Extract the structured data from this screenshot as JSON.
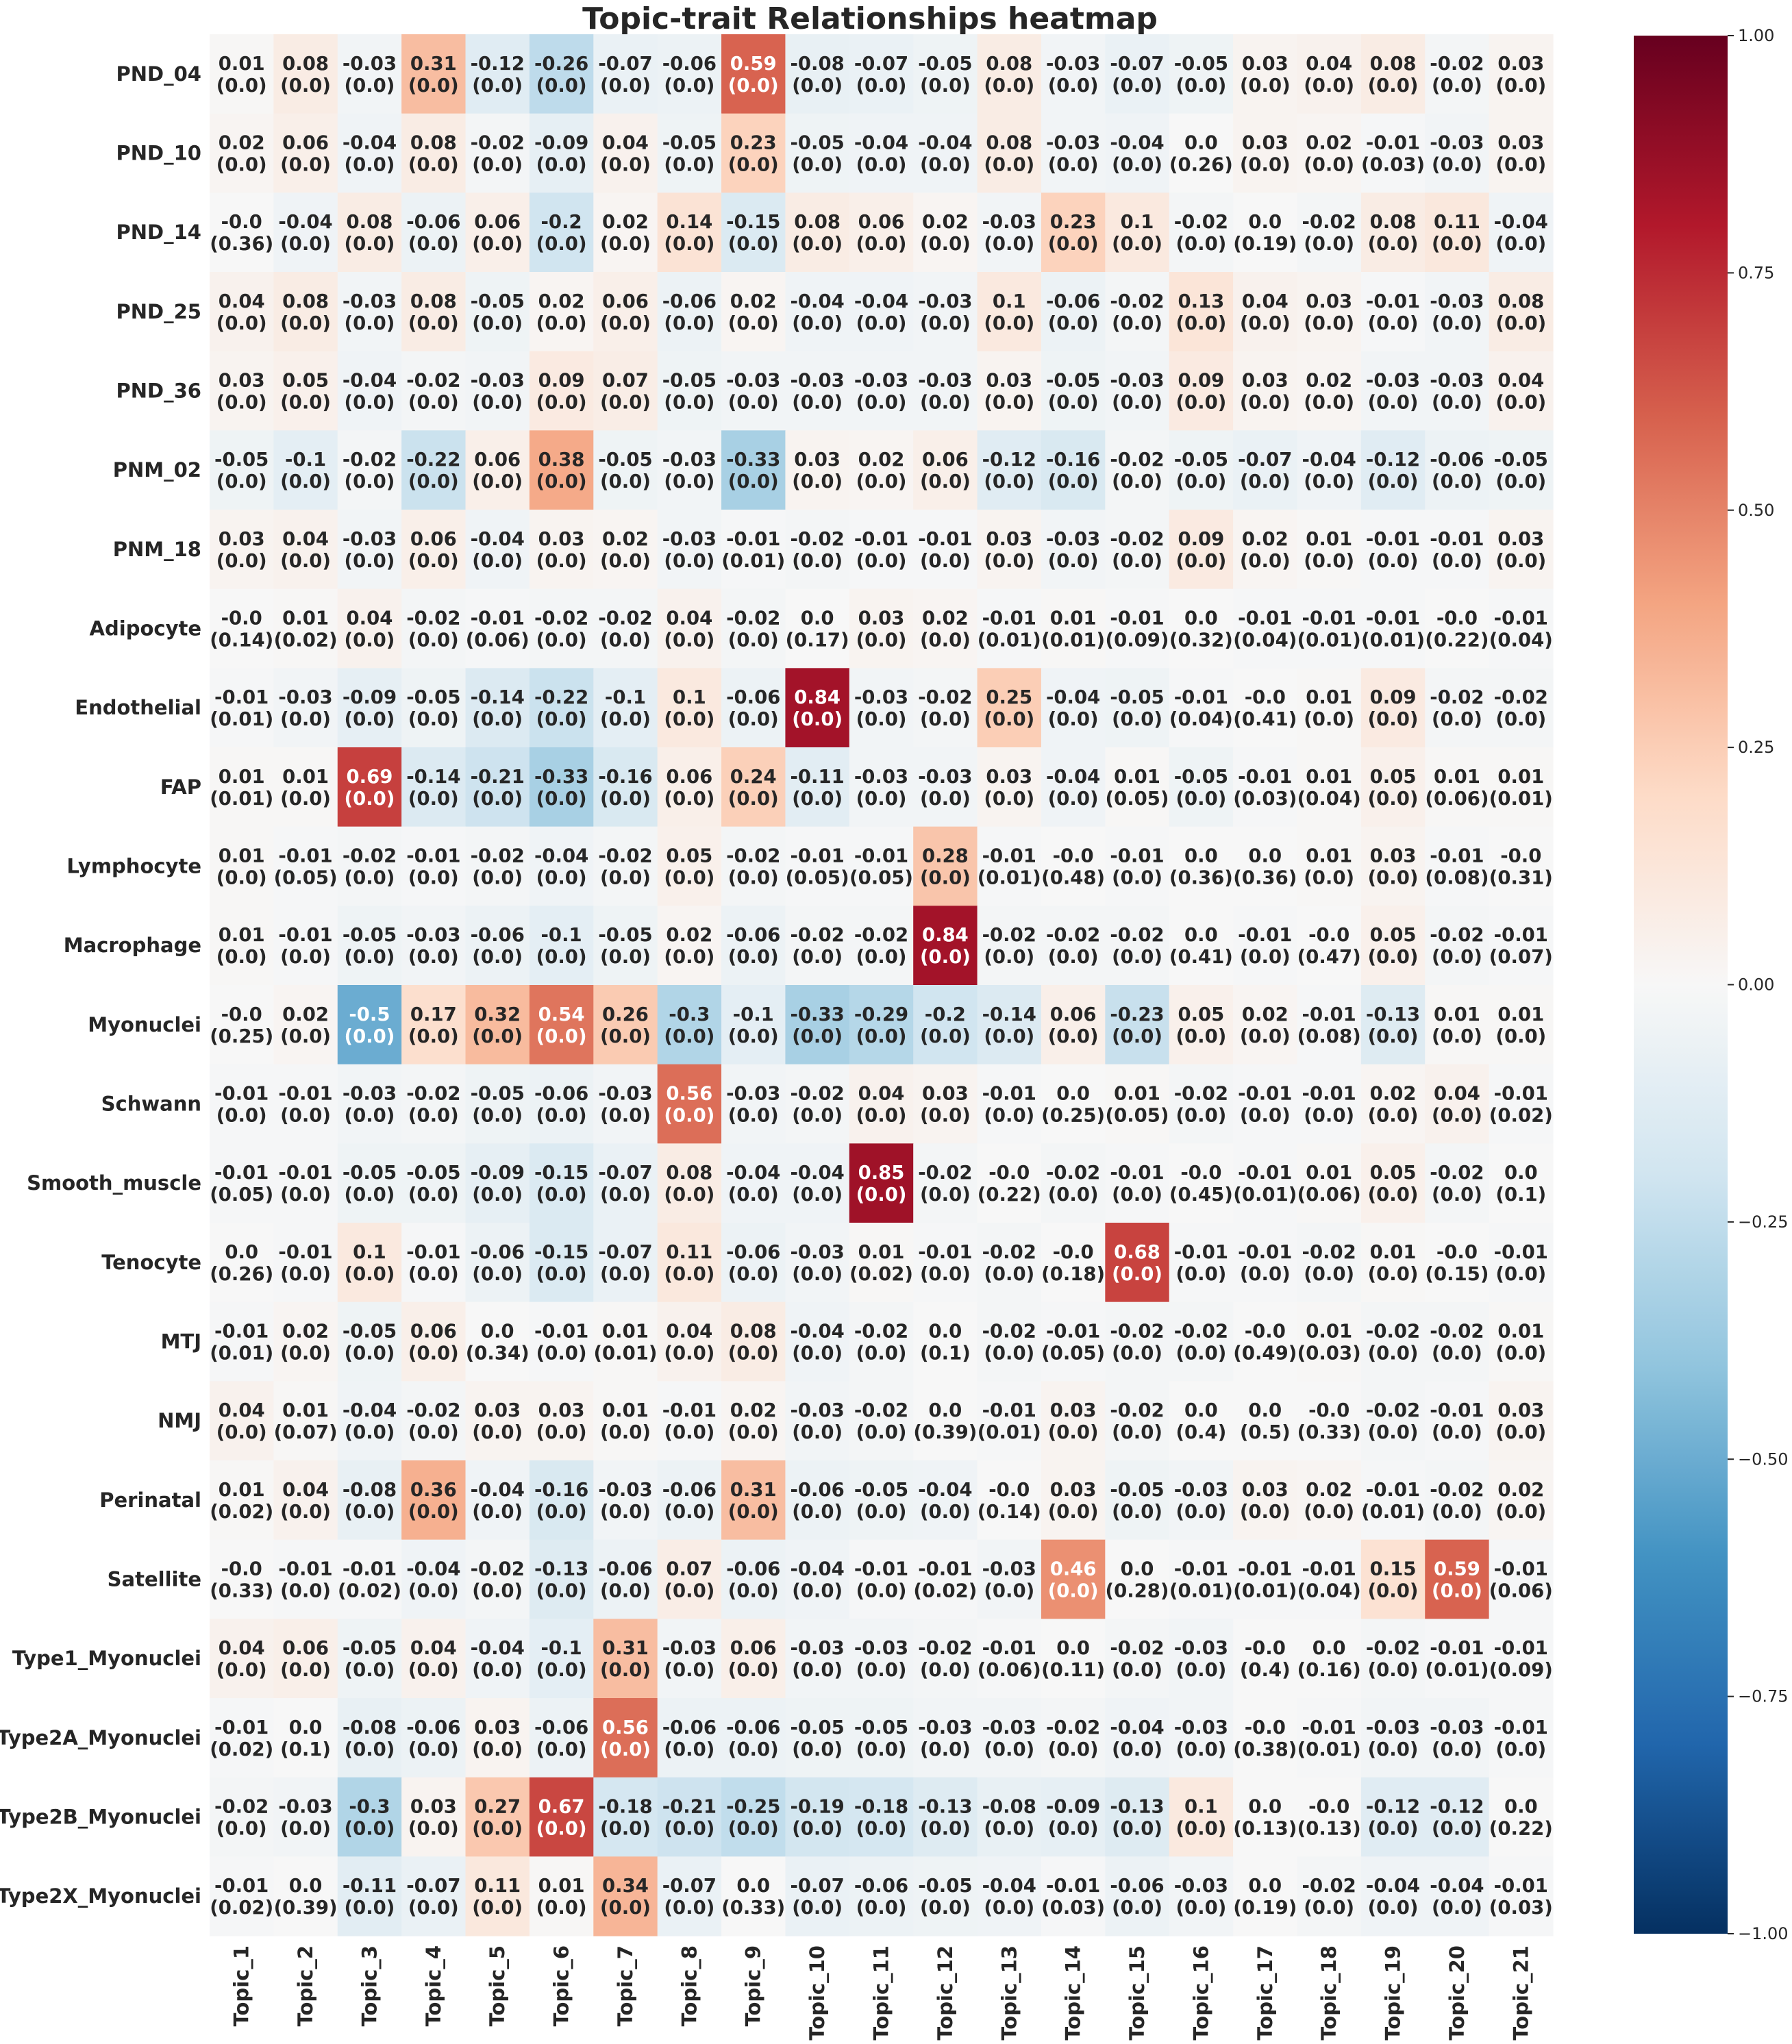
{
  "chart_data": {
    "type": "heatmap",
    "title": "Topic-trait Relationships heatmap",
    "colormap": "RdBu_r",
    "vmin": -1.0,
    "vmax": 1.0,
    "colorbar_ticks": [
      1.0,
      0.75,
      0.5,
      0.25,
      0.0,
      -0.25,
      -0.5,
      -0.75,
      -1.0
    ],
    "colorbar_tick_labels": [
      "1.00",
      "0.75",
      "0.50",
      "0.25",
      "0.00",
      "−0.25",
      "−0.50",
      "−0.75",
      "−1.00"
    ],
    "columns": [
      "Topic_1",
      "Topic_2",
      "Topic_3",
      "Topic_4",
      "Topic_5",
      "Topic_6",
      "Topic_7",
      "Topic_8",
      "Topic_9",
      "Topic_10",
      "Topic_11",
      "Topic_12",
      "Topic_13",
      "Topic_14",
      "Topic_15",
      "Topic_16",
      "Topic_17",
      "Topic_18",
      "Topic_19",
      "Topic_20",
      "Topic_21"
    ],
    "rows": [
      "PND_04",
      "PND_10",
      "PND_14",
      "PND_25",
      "PND_36",
      "PNM_02",
      "PNM_18",
      "Adipocyte",
      "Endothelial",
      "FAP",
      "Lymphocyte",
      "Macrophage",
      "Myonuclei",
      "Schwann",
      "Smooth_muscle",
      "Tenocyte",
      "MTJ",
      "NMJ",
      "Perinatal",
      "Satellite",
      "Type1_Myonuclei",
      "Type2A_Myonuclei",
      "Type2B_Myonuclei",
      "Type2X_Myonuclei"
    ],
    "values": [
      [
        "0.01",
        "0.08",
        "-0.03",
        "0.31",
        "-0.12",
        "-0.26",
        "-0.07",
        "-0.06",
        "0.59",
        "-0.08",
        "-0.07",
        "-0.05",
        "0.08",
        "-0.03",
        "-0.07",
        "-0.05",
        "0.03",
        "0.04",
        "0.08",
        "-0.02",
        "0.03"
      ],
      [
        "0.02",
        "0.06",
        "-0.04",
        "0.08",
        "-0.02",
        "-0.09",
        "0.04",
        "-0.05",
        "0.23",
        "-0.05",
        "-0.04",
        "-0.04",
        "0.08",
        "-0.03",
        "-0.04",
        "0.0",
        "0.03",
        "0.02",
        "-0.01",
        "-0.03",
        "0.03"
      ],
      [
        "-0.0",
        "-0.04",
        "0.08",
        "-0.06",
        "0.06",
        "-0.2",
        "0.02",
        "0.14",
        "-0.15",
        "0.08",
        "0.06",
        "0.02",
        "-0.03",
        "0.23",
        "0.1",
        "-0.02",
        "0.0",
        "-0.02",
        "0.08",
        "0.11",
        "-0.04"
      ],
      [
        "0.04",
        "0.08",
        "-0.03",
        "0.08",
        "-0.05",
        "0.02",
        "0.06",
        "-0.06",
        "0.02",
        "-0.04",
        "-0.04",
        "-0.03",
        "0.1",
        "-0.06",
        "-0.02",
        "0.13",
        "0.04",
        "0.03",
        "-0.01",
        "-0.03",
        "0.08"
      ],
      [
        "0.03",
        "0.05",
        "-0.04",
        "-0.02",
        "-0.03",
        "0.09",
        "0.07",
        "-0.05",
        "-0.03",
        "-0.03",
        "-0.03",
        "-0.03",
        "0.03",
        "-0.05",
        "-0.03",
        "0.09",
        "0.03",
        "0.02",
        "-0.03",
        "-0.03",
        "0.04"
      ],
      [
        "-0.05",
        "-0.1",
        "-0.02",
        "-0.22",
        "0.06",
        "0.38",
        "-0.05",
        "-0.03",
        "-0.33",
        "0.03",
        "0.02",
        "0.06",
        "-0.12",
        "-0.16",
        "-0.02",
        "-0.05",
        "-0.07",
        "-0.04",
        "-0.12",
        "-0.06",
        "-0.05"
      ],
      [
        "0.03",
        "0.04",
        "-0.03",
        "0.06",
        "-0.04",
        "0.03",
        "0.02",
        "-0.03",
        "-0.01",
        "-0.02",
        "-0.01",
        "-0.01",
        "0.03",
        "-0.03",
        "-0.02",
        "0.09",
        "0.02",
        "0.01",
        "-0.01",
        "-0.01",
        "0.03"
      ],
      [
        "-0.0",
        "0.01",
        "0.04",
        "-0.02",
        "-0.01",
        "-0.02",
        "-0.02",
        "0.04",
        "-0.02",
        "0.0",
        "0.03",
        "0.02",
        "-0.01",
        "0.01",
        "-0.01",
        "0.0",
        "-0.01",
        "-0.01",
        "-0.01",
        "-0.0",
        "-0.01"
      ],
      [
        "-0.01",
        "-0.03",
        "-0.09",
        "-0.05",
        "-0.14",
        "-0.22",
        "-0.1",
        "0.1",
        "-0.06",
        "0.84",
        "-0.03",
        "-0.02",
        "0.25",
        "-0.04",
        "-0.05",
        "-0.01",
        "-0.0",
        "0.01",
        "0.09",
        "-0.02",
        "-0.02"
      ],
      [
        "0.01",
        "0.01",
        "0.69",
        "-0.14",
        "-0.21",
        "-0.33",
        "-0.16",
        "0.06",
        "0.24",
        "-0.11",
        "-0.03",
        "-0.03",
        "0.03",
        "-0.04",
        "0.01",
        "-0.05",
        "-0.01",
        "0.01",
        "0.05",
        "0.01",
        "0.01"
      ],
      [
        "0.01",
        "-0.01",
        "-0.02",
        "-0.01",
        "-0.02",
        "-0.04",
        "-0.02",
        "0.05",
        "-0.02",
        "-0.01",
        "-0.01",
        "0.28",
        "-0.01",
        "-0.0",
        "-0.01",
        "0.0",
        "0.0",
        "0.01",
        "0.03",
        "-0.01",
        "-0.0"
      ],
      [
        "0.01",
        "-0.01",
        "-0.05",
        "-0.03",
        "-0.06",
        "-0.1",
        "-0.05",
        "0.02",
        "-0.06",
        "-0.02",
        "-0.02",
        "0.84",
        "-0.02",
        "-0.02",
        "-0.02",
        "0.0",
        "-0.01",
        "-0.0",
        "0.05",
        "-0.02",
        "-0.01"
      ],
      [
        "-0.0",
        "0.02",
        "-0.5",
        "0.17",
        "0.32",
        "0.54",
        "0.26",
        "-0.3",
        "-0.1",
        "-0.33",
        "-0.29",
        "-0.2",
        "-0.14",
        "0.06",
        "-0.23",
        "0.05",
        "0.02",
        "-0.01",
        "-0.13",
        "0.01",
        "0.01"
      ],
      [
        "-0.01",
        "-0.01",
        "-0.03",
        "-0.02",
        "-0.05",
        "-0.06",
        "-0.03",
        "0.56",
        "-0.03",
        "-0.02",
        "0.04",
        "0.03",
        "-0.01",
        "0.0",
        "0.01",
        "-0.02",
        "-0.01",
        "-0.01",
        "0.02",
        "0.04",
        "-0.01"
      ],
      [
        "-0.01",
        "-0.01",
        "-0.05",
        "-0.05",
        "-0.09",
        "-0.15",
        "-0.07",
        "0.08",
        "-0.04",
        "-0.04",
        "0.85",
        "-0.02",
        "-0.0",
        "-0.02",
        "-0.01",
        "-0.0",
        "-0.01",
        "0.01",
        "0.05",
        "-0.02",
        "0.0"
      ],
      [
        "0.0",
        "-0.01",
        "0.1",
        "-0.01",
        "-0.06",
        "-0.15",
        "-0.07",
        "0.11",
        "-0.06",
        "-0.03",
        "0.01",
        "-0.01",
        "-0.02",
        "-0.0",
        "0.68",
        "-0.01",
        "-0.01",
        "-0.02",
        "0.01",
        "-0.0",
        "-0.01"
      ],
      [
        "-0.01",
        "0.02",
        "-0.05",
        "0.06",
        "0.0",
        "-0.01",
        "0.01",
        "0.04",
        "0.08",
        "-0.04",
        "-0.02",
        "0.0",
        "-0.02",
        "-0.01",
        "-0.02",
        "-0.02",
        "-0.0",
        "0.01",
        "-0.02",
        "-0.02",
        "0.01"
      ],
      [
        "0.04",
        "0.01",
        "-0.04",
        "-0.02",
        "0.03",
        "0.03",
        "0.01",
        "-0.01",
        "0.02",
        "-0.03",
        "-0.02",
        "0.0",
        "-0.01",
        "0.03",
        "-0.02",
        "0.0",
        "0.0",
        "-0.0",
        "-0.02",
        "-0.01",
        "0.03"
      ],
      [
        "0.01",
        "0.04",
        "-0.08",
        "0.36",
        "-0.04",
        "-0.16",
        "-0.03",
        "-0.06",
        "0.31",
        "-0.06",
        "-0.05",
        "-0.04",
        "-0.0",
        "0.03",
        "-0.05",
        "-0.03",
        "0.03",
        "0.02",
        "-0.01",
        "-0.02",
        "0.02"
      ],
      [
        "-0.0",
        "-0.01",
        "-0.01",
        "-0.04",
        "-0.02",
        "-0.13",
        "-0.06",
        "0.07",
        "-0.06",
        "-0.04",
        "-0.01",
        "-0.01",
        "-0.03",
        "0.46",
        "0.0",
        "-0.01",
        "-0.01",
        "-0.01",
        "0.15",
        "0.59",
        "-0.01"
      ],
      [
        "0.04",
        "0.06",
        "-0.05",
        "0.04",
        "-0.04",
        "-0.1",
        "0.31",
        "-0.03",
        "0.06",
        "-0.03",
        "-0.03",
        "-0.02",
        "-0.01",
        "0.0",
        "-0.02",
        "-0.03",
        "-0.0",
        "0.0",
        "-0.02",
        "-0.01",
        "-0.01"
      ],
      [
        "-0.01",
        "0.0",
        "-0.08",
        "-0.06",
        "0.03",
        "-0.06",
        "0.56",
        "-0.06",
        "-0.06",
        "-0.05",
        "-0.05",
        "-0.03",
        "-0.03",
        "-0.02",
        "-0.04",
        "-0.03",
        "-0.0",
        "-0.01",
        "-0.03",
        "-0.03",
        "-0.01"
      ],
      [
        "-0.02",
        "-0.03",
        "-0.3",
        "0.03",
        "0.27",
        "0.67",
        "-0.18",
        "-0.21",
        "-0.25",
        "-0.19",
        "-0.18",
        "-0.13",
        "-0.08",
        "-0.09",
        "-0.13",
        "0.1",
        "0.0",
        "-0.0",
        "-0.12",
        "-0.12",
        "0.0"
      ],
      [
        "-0.01",
        "0.0",
        "-0.11",
        "-0.07",
        "0.11",
        "0.01",
        "0.34",
        "-0.07",
        "0.0",
        "-0.07",
        "-0.06",
        "-0.05",
        "-0.04",
        "-0.01",
        "-0.06",
        "-0.03",
        "0.0",
        "-0.02",
        "-0.04",
        "-0.04",
        "-0.01"
      ]
    ],
    "pvalues": [
      [
        "(0.0)",
        "(0.0)",
        "(0.0)",
        "(0.0)",
        "(0.0)",
        "(0.0)",
        "(0.0)",
        "(0.0)",
        "(0.0)",
        "(0.0)",
        "(0.0)",
        "(0.0)",
        "(0.0)",
        "(0.0)",
        "(0.0)",
        "(0.0)",
        "(0.0)",
        "(0.0)",
        "(0.0)",
        "(0.0)",
        "(0.0)"
      ],
      [
        "(0.0)",
        "(0.0)",
        "(0.0)",
        "(0.0)",
        "(0.0)",
        "(0.0)",
        "(0.0)",
        "(0.0)",
        "(0.0)",
        "(0.0)",
        "(0.0)",
        "(0.0)",
        "(0.0)",
        "(0.0)",
        "(0.0)",
        "(0.26)",
        "(0.0)",
        "(0.0)",
        "(0.03)",
        "(0.0)",
        "(0.0)"
      ],
      [
        "(0.36)",
        "(0.0)",
        "(0.0)",
        "(0.0)",
        "(0.0)",
        "(0.0)",
        "(0.0)",
        "(0.0)",
        "(0.0)",
        "(0.0)",
        "(0.0)",
        "(0.0)",
        "(0.0)",
        "(0.0)",
        "(0.0)",
        "(0.0)",
        "(0.19)",
        "(0.0)",
        "(0.0)",
        "(0.0)",
        "(0.0)"
      ],
      [
        "(0.0)",
        "(0.0)",
        "(0.0)",
        "(0.0)",
        "(0.0)",
        "(0.0)",
        "(0.0)",
        "(0.0)",
        "(0.0)",
        "(0.0)",
        "(0.0)",
        "(0.0)",
        "(0.0)",
        "(0.0)",
        "(0.0)",
        "(0.0)",
        "(0.0)",
        "(0.0)",
        "(0.0)",
        "(0.0)",
        "(0.0)"
      ],
      [
        "(0.0)",
        "(0.0)",
        "(0.0)",
        "(0.0)",
        "(0.0)",
        "(0.0)",
        "(0.0)",
        "(0.0)",
        "(0.0)",
        "(0.0)",
        "(0.0)",
        "(0.0)",
        "(0.0)",
        "(0.0)",
        "(0.0)",
        "(0.0)",
        "(0.0)",
        "(0.0)",
        "(0.0)",
        "(0.0)",
        "(0.0)"
      ],
      [
        "(0.0)",
        "(0.0)",
        "(0.0)",
        "(0.0)",
        "(0.0)",
        "(0.0)",
        "(0.0)",
        "(0.0)",
        "(0.0)",
        "(0.0)",
        "(0.0)",
        "(0.0)",
        "(0.0)",
        "(0.0)",
        "(0.0)",
        "(0.0)",
        "(0.0)",
        "(0.0)",
        "(0.0)",
        "(0.0)",
        "(0.0)"
      ],
      [
        "(0.0)",
        "(0.0)",
        "(0.0)",
        "(0.0)",
        "(0.0)",
        "(0.0)",
        "(0.0)",
        "(0.0)",
        "(0.01)",
        "(0.0)",
        "(0.0)",
        "(0.0)",
        "(0.0)",
        "(0.0)",
        "(0.0)",
        "(0.0)",
        "(0.0)",
        "(0.0)",
        "(0.0)",
        "(0.0)",
        "(0.0)"
      ],
      [
        "(0.14)",
        "(0.02)",
        "(0.0)",
        "(0.0)",
        "(0.06)",
        "(0.0)",
        "(0.0)",
        "(0.0)",
        "(0.0)",
        "(0.17)",
        "(0.0)",
        "(0.0)",
        "(0.01)",
        "(0.01)",
        "(0.09)",
        "(0.32)",
        "(0.04)",
        "(0.01)",
        "(0.01)",
        "(0.22)",
        "(0.04)"
      ],
      [
        "(0.01)",
        "(0.0)",
        "(0.0)",
        "(0.0)",
        "(0.0)",
        "(0.0)",
        "(0.0)",
        "(0.0)",
        "(0.0)",
        "(0.0)",
        "(0.0)",
        "(0.0)",
        "(0.0)",
        "(0.0)",
        "(0.0)",
        "(0.04)",
        "(0.41)",
        "(0.0)",
        "(0.0)",
        "(0.0)",
        "(0.0)"
      ],
      [
        "(0.01)",
        "(0.0)",
        "(0.0)",
        "(0.0)",
        "(0.0)",
        "(0.0)",
        "(0.0)",
        "(0.0)",
        "(0.0)",
        "(0.0)",
        "(0.0)",
        "(0.0)",
        "(0.0)",
        "(0.0)",
        "(0.05)",
        "(0.0)",
        "(0.03)",
        "(0.04)",
        "(0.0)",
        "(0.06)",
        "(0.01)"
      ],
      [
        "(0.0)",
        "(0.05)",
        "(0.0)",
        "(0.0)",
        "(0.0)",
        "(0.0)",
        "(0.0)",
        "(0.0)",
        "(0.0)",
        "(0.05)",
        "(0.05)",
        "(0.0)",
        "(0.01)",
        "(0.48)",
        "(0.0)",
        "(0.36)",
        "(0.36)",
        "(0.0)",
        "(0.0)",
        "(0.08)",
        "(0.31)"
      ],
      [
        "(0.0)",
        "(0.0)",
        "(0.0)",
        "(0.0)",
        "(0.0)",
        "(0.0)",
        "(0.0)",
        "(0.0)",
        "(0.0)",
        "(0.0)",
        "(0.0)",
        "(0.0)",
        "(0.0)",
        "(0.0)",
        "(0.0)",
        "(0.41)",
        "(0.0)",
        "(0.47)",
        "(0.0)",
        "(0.0)",
        "(0.07)"
      ],
      [
        "(0.25)",
        "(0.0)",
        "(0.0)",
        "(0.0)",
        "(0.0)",
        "(0.0)",
        "(0.0)",
        "(0.0)",
        "(0.0)",
        "(0.0)",
        "(0.0)",
        "(0.0)",
        "(0.0)",
        "(0.0)",
        "(0.0)",
        "(0.0)",
        "(0.0)",
        "(0.08)",
        "(0.0)",
        "(0.0)",
        "(0.0)"
      ],
      [
        "(0.0)",
        "(0.0)",
        "(0.0)",
        "(0.0)",
        "(0.0)",
        "(0.0)",
        "(0.0)",
        "(0.0)",
        "(0.0)",
        "(0.0)",
        "(0.0)",
        "(0.0)",
        "(0.0)",
        "(0.25)",
        "(0.05)",
        "(0.0)",
        "(0.0)",
        "(0.0)",
        "(0.0)",
        "(0.0)",
        "(0.02)"
      ],
      [
        "(0.05)",
        "(0.0)",
        "(0.0)",
        "(0.0)",
        "(0.0)",
        "(0.0)",
        "(0.0)",
        "(0.0)",
        "(0.0)",
        "(0.0)",
        "(0.0)",
        "(0.0)",
        "(0.22)",
        "(0.0)",
        "(0.0)",
        "(0.45)",
        "(0.01)",
        "(0.06)",
        "(0.0)",
        "(0.0)",
        "(0.1)"
      ],
      [
        "(0.26)",
        "(0.0)",
        "(0.0)",
        "(0.0)",
        "(0.0)",
        "(0.0)",
        "(0.0)",
        "(0.0)",
        "(0.0)",
        "(0.0)",
        "(0.02)",
        "(0.0)",
        "(0.0)",
        "(0.18)",
        "(0.0)",
        "(0.0)",
        "(0.0)",
        "(0.0)",
        "(0.0)",
        "(0.15)",
        "(0.0)"
      ],
      [
        "(0.01)",
        "(0.0)",
        "(0.0)",
        "(0.0)",
        "(0.34)",
        "(0.0)",
        "(0.01)",
        "(0.0)",
        "(0.0)",
        "(0.0)",
        "(0.0)",
        "(0.1)",
        "(0.0)",
        "(0.05)",
        "(0.0)",
        "(0.0)",
        "(0.49)",
        "(0.03)",
        "(0.0)",
        "(0.0)",
        "(0.0)"
      ],
      [
        "(0.0)",
        "(0.07)",
        "(0.0)",
        "(0.0)",
        "(0.0)",
        "(0.0)",
        "(0.0)",
        "(0.0)",
        "(0.0)",
        "(0.0)",
        "(0.0)",
        "(0.39)",
        "(0.01)",
        "(0.0)",
        "(0.0)",
        "(0.4)",
        "(0.5)",
        "(0.33)",
        "(0.0)",
        "(0.0)",
        "(0.0)"
      ],
      [
        "(0.02)",
        "(0.0)",
        "(0.0)",
        "(0.0)",
        "(0.0)",
        "(0.0)",
        "(0.0)",
        "(0.0)",
        "(0.0)",
        "(0.0)",
        "(0.0)",
        "(0.0)",
        "(0.14)",
        "(0.0)",
        "(0.0)",
        "(0.0)",
        "(0.0)",
        "(0.0)",
        "(0.01)",
        "(0.0)",
        "(0.0)"
      ],
      [
        "(0.33)",
        "(0.0)",
        "(0.02)",
        "(0.0)",
        "(0.0)",
        "(0.0)",
        "(0.0)",
        "(0.0)",
        "(0.0)",
        "(0.0)",
        "(0.0)",
        "(0.02)",
        "(0.0)",
        "(0.0)",
        "(0.28)",
        "(0.01)",
        "(0.01)",
        "(0.04)",
        "(0.0)",
        "(0.0)",
        "(0.06)"
      ],
      [
        "(0.0)",
        "(0.0)",
        "(0.0)",
        "(0.0)",
        "(0.0)",
        "(0.0)",
        "(0.0)",
        "(0.0)",
        "(0.0)",
        "(0.0)",
        "(0.0)",
        "(0.0)",
        "(0.06)",
        "(0.11)",
        "(0.0)",
        "(0.0)",
        "(0.4)",
        "(0.16)",
        "(0.0)",
        "(0.01)",
        "(0.09)"
      ],
      [
        "(0.02)",
        "(0.1)",
        "(0.0)",
        "(0.0)",
        "(0.0)",
        "(0.0)",
        "(0.0)",
        "(0.0)",
        "(0.0)",
        "(0.0)",
        "(0.0)",
        "(0.0)",
        "(0.0)",
        "(0.0)",
        "(0.0)",
        "(0.0)",
        "(0.38)",
        "(0.01)",
        "(0.0)",
        "(0.0)",
        "(0.0)"
      ],
      [
        "(0.0)",
        "(0.0)",
        "(0.0)",
        "(0.0)",
        "(0.0)",
        "(0.0)",
        "(0.0)",
        "(0.0)",
        "(0.0)",
        "(0.0)",
        "(0.0)",
        "(0.0)",
        "(0.0)",
        "(0.0)",
        "(0.0)",
        "(0.0)",
        "(0.13)",
        "(0.13)",
        "(0.0)",
        "(0.0)",
        "(0.22)"
      ],
      [
        "(0.02)",
        "(0.39)",
        "(0.0)",
        "(0.0)",
        "(0.0)",
        "(0.0)",
        "(0.0)",
        "(0.0)",
        "(0.33)",
        "(0.0)",
        "(0.0)",
        "(0.0)",
        "(0.0)",
        "(0.03)",
        "(0.0)",
        "(0.0)",
        "(0.19)",
        "(0.0)",
        "(0.0)",
        "(0.0)",
        "(0.03)"
      ]
    ]
  }
}
